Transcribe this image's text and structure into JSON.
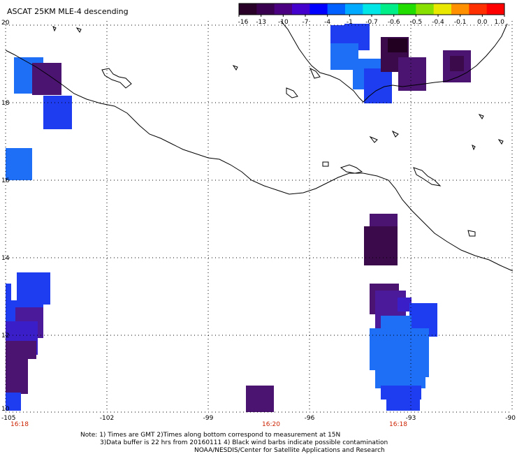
{
  "header": {
    "title": "ASCAT 25KM MLE-4 descending"
  },
  "map": {
    "lon_range": [
      -105,
      -90
    ],
    "lat_range": [
      10,
      20
    ],
    "lon_ticks": [
      "-105",
      "-102",
      "-99",
      "-96",
      "-93",
      "-90"
    ],
    "lat_ticks": [
      "20",
      "18",
      "16",
      "14",
      "12",
      "10"
    ],
    "time_labels": [
      {
        "text": "16:18",
        "lon": -104.5
      },
      {
        "text": "16:20",
        "lon": -97.9
      },
      {
        "text": "16:18",
        "lon": -93.45
      }
    ],
    "grid": "dotted"
  },
  "colorbar": {
    "ticks": [
      "-16",
      "-13",
      "-10",
      "-7",
      "-4",
      "-1",
      "-0.7",
      "-0.6",
      "-0.5",
      "-0.4",
      "-0.1",
      "0.0",
      "1.0"
    ],
    "colors": [
      "#280028",
      "#3a0050",
      "#4b0082",
      "#4400cc",
      "#0000ff",
      "#0060ff",
      "#00aaff",
      "#00e5e5",
      "#00ee88",
      "#22dd00",
      "#88e000",
      "#e8e800",
      "#ff9000",
      "#ff3000",
      "#ff0000"
    ]
  },
  "footer": {
    "note_line1": "Note: 1) Times are GMT 2)Times along bottom correspond to measurement at 15N",
    "note_line2": "3)Data buffer is 22 hrs from 20160111 4) Black wind barbs indicate possible contamination",
    "credit": "NOAA/NESDIS/Center for Satellite Applications and Research"
  },
  "colors": {
    "dark_purple": "#3b0a4a",
    "purple": "#4b1470",
    "violet": "#4a1a9a",
    "blue_violet": "#3a1ec8",
    "blue": "#1e3cf0",
    "light_blue": "#1e6ef6"
  }
}
